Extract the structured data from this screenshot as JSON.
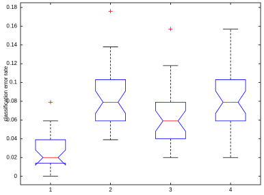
{
  "chart_data": {
    "type": "boxplot",
    "y_label": "classification error rate",
    "categories": [
      "1",
      "2",
      "3",
      "4"
    ],
    "whisker_low": [
      0,
      0.039,
      0.02,
      0.02
    ],
    "q1": [
      0.014,
      0.059,
      0.04,
      0.059
    ],
    "notch_low": [
      0.012,
      0.067,
      0.048,
      0.067
    ],
    "median": [
      0.02,
      0.079,
      0.059,
      0.079
    ],
    "notch_high": [
      0.028,
      0.091,
      0.07,
      0.091
    ],
    "q3": [
      0.039,
      0.103,
      0.079,
      0.103
    ],
    "whisker_high": [
      0.059,
      0.138,
      0.118,
      0.157
    ],
    "outliers": [
      [
        0.079
      ],
      [
        0.176
      ],
      [
        0.157
      ],
      []
    ],
    "box_color": "#0000ff",
    "median_color": "#ff0000",
    "whisker_color": "#000000",
    "outlier_color": "#ff0000",
    "xlim": [
      0.5,
      4.5
    ],
    "ylim": [
      -0.009,
      0.185
    ],
    "yticks": [
      0,
      0.02,
      0.04,
      0.06,
      0.08,
      0.1,
      0.12,
      0.14,
      0.16,
      0.18
    ]
  }
}
